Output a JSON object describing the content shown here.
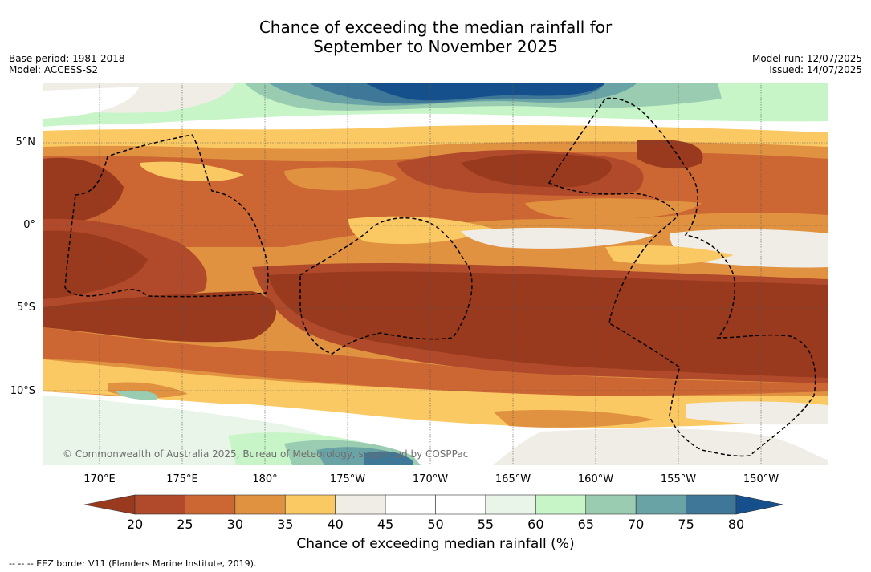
{
  "title_line1": "Chance of exceeding the median rainfall for",
  "title_line2": "September to November 2025",
  "meta_left": {
    "base_period": "Base period: 1981-2018",
    "model": "Model: ACCESS-S2"
  },
  "meta_right": {
    "model_run": "Model run: 12/07/2025",
    "issued": "Issued: 14/07/2025"
  },
  "lat_labels": [
    "5°N",
    "0°",
    "5°S",
    "10°S"
  ],
  "lon_labels": [
    "170°E",
    "175°E",
    "180°",
    "175°W",
    "170°W",
    "165°W",
    "160°W",
    "155°W",
    "150°W"
  ],
  "copyright": "© Commonwealth of Australia 2025, Bureau of Meteorology, supported by COSPPac",
  "colorbar": {
    "ticks": [
      "20",
      "25",
      "30",
      "35",
      "40",
      "45",
      "50",
      "55",
      "60",
      "65",
      "70",
      "75",
      "80"
    ],
    "colors": [
      "#993a1f",
      "#b04a2a",
      "#cc6633",
      "#e09240",
      "#fbc964",
      "#f0ece6",
      "#ffffff",
      "#ffffff",
      "#eaf5ea",
      "#c8f5c8",
      "#99ccb0",
      "#6aa3a5",
      "#3e7797",
      "#15508c"
    ],
    "label": "Chance of exceeding median rainfall (%)"
  },
  "legend_note": "-- -- -- EEZ border V11 (Flanders Marine Institute, 2019)."
}
